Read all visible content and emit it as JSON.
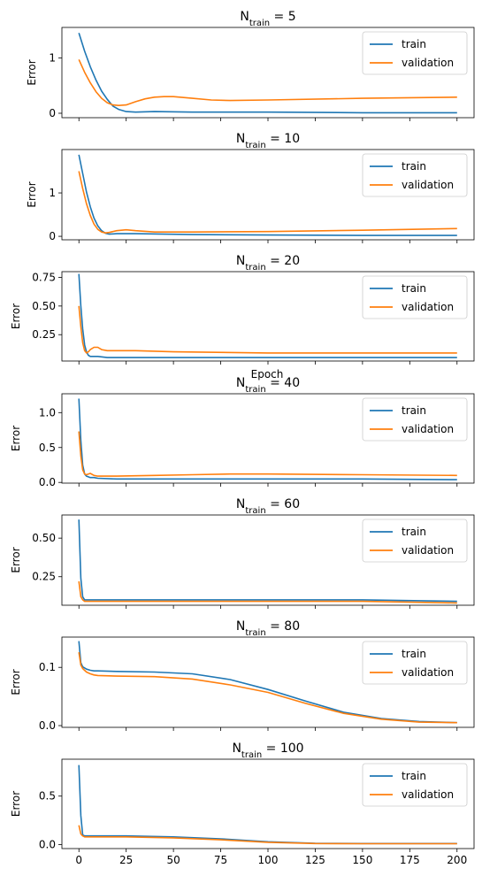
{
  "chart_data": [
    {
      "type": "line",
      "title": "N_train = 5",
      "title_main": "N",
      "title_sub": "train",
      "title_rest": " = 5",
      "ylabel": "Error",
      "xlim": [
        -9,
        209
      ],
      "ylim": [
        -0.08,
        1.55
      ],
      "yticks": [
        {
          "v": 0,
          "label": "0"
        },
        {
          "v": 1,
          "label": "1"
        }
      ],
      "series": [
        {
          "name": "train",
          "color": "#1f77b4",
          "x": [
            0,
            3,
            6,
            9,
            12,
            15,
            18,
            21,
            25,
            30,
            40,
            60,
            100,
            150,
            200
          ],
          "y": [
            1.45,
            1.12,
            0.84,
            0.6,
            0.4,
            0.25,
            0.13,
            0.07,
            0.03,
            0.02,
            0.03,
            0.02,
            0.02,
            0.01,
            0.01
          ]
        },
        {
          "name": "validation",
          "color": "#ff7f0e",
          "x": [
            0,
            3,
            6,
            9,
            12,
            15,
            18,
            21,
            25,
            30,
            35,
            40,
            45,
            50,
            60,
            70,
            80,
            100,
            150,
            200
          ],
          "y": [
            0.97,
            0.74,
            0.55,
            0.39,
            0.27,
            0.19,
            0.15,
            0.14,
            0.15,
            0.21,
            0.26,
            0.29,
            0.3,
            0.3,
            0.27,
            0.24,
            0.23,
            0.24,
            0.27,
            0.29
          ]
        }
      ]
    },
    {
      "type": "line",
      "title": "N_train = 10",
      "title_main": "N",
      "title_sub": "train",
      "title_rest": " = 10",
      "ylabel": "Error",
      "xlim": [
        -9,
        209
      ],
      "ylim": [
        -0.08,
        2.0
      ],
      "yticks": [
        {
          "v": 0,
          "label": "0"
        },
        {
          "v": 1,
          "label": "1"
        }
      ],
      "series": [
        {
          "name": "train",
          "color": "#1f77b4",
          "x": [
            0,
            2,
            4,
            6,
            8,
            10,
            12,
            14,
            16,
            20,
            30,
            60,
            100,
            150,
            200
          ],
          "y": [
            1.88,
            1.45,
            1.02,
            0.68,
            0.42,
            0.24,
            0.13,
            0.07,
            0.05,
            0.06,
            0.06,
            0.04,
            0.03,
            0.02,
            0.02
          ]
        },
        {
          "name": "validation",
          "color": "#ff7f0e",
          "x": [
            0,
            2,
            4,
            6,
            8,
            10,
            12,
            14,
            16,
            20,
            25,
            30,
            40,
            60,
            100,
            150,
            200
          ],
          "y": [
            1.5,
            1.1,
            0.75,
            0.48,
            0.28,
            0.16,
            0.1,
            0.08,
            0.09,
            0.13,
            0.15,
            0.13,
            0.1,
            0.1,
            0.11,
            0.14,
            0.18
          ]
        }
      ]
    },
    {
      "type": "line",
      "title": "N_train = 20",
      "title_main": "N",
      "title_sub": "train",
      "title_rest": " = 20",
      "ylabel": "Error",
      "xlabel_overlap": "Epoch",
      "xlim": [
        -9,
        209
      ],
      "ylim": [
        0.02,
        0.8
      ],
      "yticks": [
        {
          "v": 0.25,
          "label": "0.25"
        },
        {
          "v": 0.5,
          "label": "0.50"
        },
        {
          "v": 0.75,
          "label": "0.75"
        }
      ],
      "series": [
        {
          "name": "train",
          "color": "#1f77b4",
          "x": [
            0,
            1,
            2,
            3,
            4,
            5,
            6,
            8,
            10,
            15,
            30,
            60,
            100,
            150,
            200
          ],
          "y": [
            0.78,
            0.5,
            0.3,
            0.16,
            0.1,
            0.07,
            0.06,
            0.06,
            0.06,
            0.05,
            0.05,
            0.05,
            0.05,
            0.05,
            0.05
          ]
        },
        {
          "name": "validation",
          "color": "#ff7f0e",
          "x": [
            0,
            1,
            2,
            3,
            4,
            5,
            6,
            8,
            10,
            12,
            15,
            20,
            25,
            30,
            50,
            100,
            150,
            200
          ],
          "y": [
            0.5,
            0.32,
            0.18,
            0.11,
            0.09,
            0.1,
            0.12,
            0.14,
            0.14,
            0.12,
            0.11,
            0.11,
            0.11,
            0.11,
            0.1,
            0.09,
            0.09,
            0.09
          ]
        }
      ]
    },
    {
      "type": "line",
      "title": "N_train = 40",
      "title_main": "N",
      "title_sub": "train",
      "title_rest": " = 40",
      "ylabel": "Error",
      "xlim": [
        -9,
        209
      ],
      "ylim": [
        -0.01,
        1.27
      ],
      "yticks": [
        {
          "v": 0,
          "label": "0.0"
        },
        {
          "v": 0.5,
          "label": "0.5"
        },
        {
          "v": 1.0,
          "label": "1.0"
        }
      ],
      "series": [
        {
          "name": "train",
          "color": "#1f77b4",
          "x": [
            0,
            1,
            2,
            3,
            4,
            5,
            6,
            8,
            10,
            20,
            50,
            100,
            150,
            200
          ],
          "y": [
            1.2,
            0.6,
            0.25,
            0.12,
            0.09,
            0.08,
            0.07,
            0.07,
            0.06,
            0.05,
            0.05,
            0.05,
            0.05,
            0.04
          ]
        },
        {
          "name": "validation",
          "color": "#ff7f0e",
          "x": [
            0,
            1,
            2,
            3,
            4,
            5,
            6,
            8,
            10,
            20,
            40,
            60,
            80,
            100,
            150,
            200
          ],
          "y": [
            0.73,
            0.38,
            0.18,
            0.12,
            0.11,
            0.12,
            0.13,
            0.1,
            0.09,
            0.09,
            0.1,
            0.11,
            0.12,
            0.12,
            0.11,
            0.1
          ]
        }
      ]
    },
    {
      "type": "line",
      "title": "N_train = 60",
      "title_main": "N",
      "title_sub": "train",
      "title_rest": " = 60",
      "ylabel": "Error",
      "xlim": [
        -9,
        209
      ],
      "ylim": [
        0.065,
        0.65
      ],
      "yticks": [
        {
          "v": 0.25,
          "label": "0.25"
        },
        {
          "v": 0.5,
          "label": "0.50"
        }
      ],
      "series": [
        {
          "name": "train",
          "color": "#1f77b4",
          "x": [
            0,
            1,
            2,
            3,
            4,
            5,
            10,
            50,
            100,
            150,
            200
          ],
          "y": [
            0.62,
            0.24,
            0.12,
            0.1,
            0.1,
            0.1,
            0.1,
            0.1,
            0.1,
            0.1,
            0.09
          ]
        },
        {
          "name": "validation",
          "color": "#ff7f0e",
          "x": [
            0,
            1,
            2,
            3,
            4,
            5,
            10,
            50,
            100,
            150,
            200
          ],
          "y": [
            0.22,
            0.12,
            0.1,
            0.09,
            0.09,
            0.09,
            0.09,
            0.09,
            0.09,
            0.09,
            0.08
          ]
        }
      ]
    },
    {
      "type": "line",
      "title": "N_train = 80",
      "title_main": "N",
      "title_sub": "train",
      "title_rest": " = 80",
      "ylabel": "Error",
      "xlim": [
        -9,
        209
      ],
      "ylim": [
        -0.003,
        0.152
      ],
      "yticks": [
        {
          "v": 0,
          "label": "0.0"
        },
        {
          "v": 0.1,
          "label": "0.1"
        }
      ],
      "series": [
        {
          "name": "train",
          "color": "#1f77b4",
          "x": [
            0,
            1,
            2,
            4,
            6,
            8,
            10,
            20,
            40,
            60,
            80,
            100,
            120,
            140,
            160,
            180,
            200
          ],
          "y": [
            0.145,
            0.108,
            0.101,
            0.097,
            0.095,
            0.094,
            0.094,
            0.093,
            0.092,
            0.089,
            0.079,
            0.062,
            0.042,
            0.023,
            0.012,
            0.007,
            0.005
          ]
        },
        {
          "name": "validation",
          "color": "#ff7f0e",
          "x": [
            0,
            1,
            2,
            4,
            6,
            8,
            10,
            20,
            40,
            60,
            80,
            100,
            120,
            140,
            160,
            180,
            200
          ],
          "y": [
            0.126,
            0.104,
            0.098,
            0.092,
            0.089,
            0.087,
            0.086,
            0.085,
            0.084,
            0.08,
            0.07,
            0.057,
            0.038,
            0.021,
            0.011,
            0.006,
            0.005
          ]
        }
      ]
    },
    {
      "type": "line",
      "title": "N_train = 100",
      "title_main": "N",
      "title_sub": "train",
      "title_rest": " = 100",
      "ylabel": "Error",
      "xlabel": "",
      "xlim": [
        -9,
        209
      ],
      "ylim": [
        -0.04,
        0.88
      ],
      "yticks": [
        {
          "v": 0,
          "label": "0.0"
        },
        {
          "v": 0.5,
          "label": "0.5"
        }
      ],
      "xticks": [
        {
          "v": 0,
          "label": "0"
        },
        {
          "v": 25,
          "label": "25"
        },
        {
          "v": 50,
          "label": "50"
        },
        {
          "v": 75,
          "label": "75"
        },
        {
          "v": 100,
          "label": "100"
        },
        {
          "v": 125,
          "label": "125"
        },
        {
          "v": 150,
          "label": "150"
        },
        {
          "v": 175,
          "label": "175"
        },
        {
          "v": 200,
          "label": "200"
        }
      ],
      "series": [
        {
          "name": "train",
          "color": "#1f77b4",
          "x": [
            0,
            1,
            2,
            3,
            5,
            10,
            25,
            50,
            75,
            100,
            125,
            150,
            200
          ],
          "y": [
            0.82,
            0.3,
            0.1,
            0.09,
            0.09,
            0.09,
            0.09,
            0.08,
            0.06,
            0.03,
            0.015,
            0.012,
            0.012
          ]
        },
        {
          "name": "validation",
          "color": "#ff7f0e",
          "x": [
            0,
            1,
            2,
            3,
            5,
            10,
            25,
            50,
            75,
            100,
            125,
            150,
            200
          ],
          "y": [
            0.2,
            0.11,
            0.09,
            0.08,
            0.08,
            0.08,
            0.08,
            0.07,
            0.05,
            0.025,
            0.012,
            0.01,
            0.01
          ]
        }
      ]
    }
  ]
}
